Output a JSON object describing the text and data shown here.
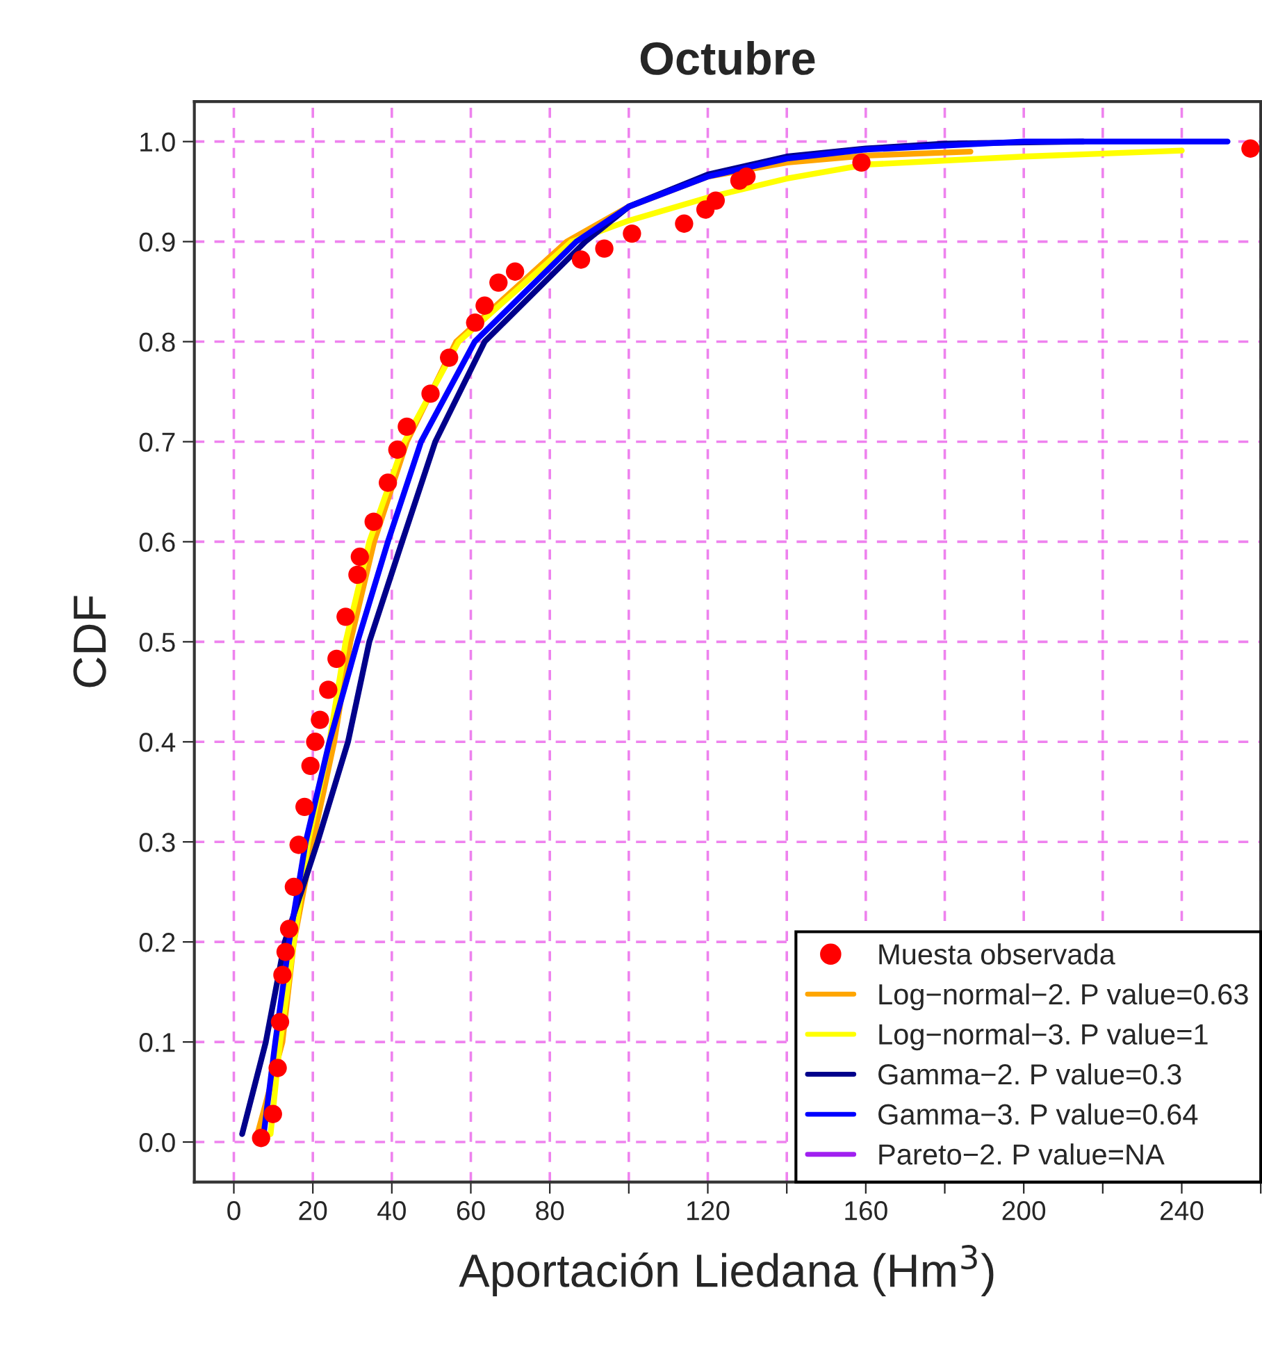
{
  "chart_data": {
    "type": "line",
    "title": "Octubre",
    "xlabel": "Aportación Liedana (Hm$^{3}$)",
    "ylabel": "CDF",
    "xlim": [
      -10,
      260
    ],
    "ylim": [
      -0.04,
      1.04
    ],
    "xticks": [
      0,
      20,
      40,
      60,
      80,
      {
        "value": 100,
        "label": null
      },
      120,
      {
        "value": 140,
        "label": null
      },
      160,
      {
        "value": 180,
        "label": null
      },
      200,
      {
        "value": 220,
        "label": null
      },
      240,
      {
        "value": 260,
        "label": null
      }
    ],
    "yticks": [
      {
        "value": 0,
        "label": "0.0"
      },
      0.1,
      0.2,
      0.3,
      0.4,
      0.5,
      0.6,
      0.7,
      0.8,
      0.9,
      {
        "value": 1,
        "label": "1.0"
      }
    ],
    "grid": true,
    "legend": "bottom right",
    "series": [
      {
        "name": "Muesta observada",
        "type": "scatter",
        "marker": "circle",
        "color": "#ff0000",
        "x": [
          6.9,
          9.9,
          11.1,
          11.7,
          12.3,
          13.1,
          14.0,
          15.2,
          16.4,
          17.9,
          19.4,
          20.6,
          21.8,
          23.9,
          26.0,
          28.3,
          31.3,
          31.9,
          35.4,
          39.0,
          41.4,
          43.8,
          49.8,
          54.5,
          61.1,
          63.5,
          67.0,
          71.2,
          87.9,
          93.8,
          100.8,
          114.0,
          119.4,
          122.0,
          128.0,
          129.8,
          158.9,
          257.4
        ],
        "values": [
          0.004,
          0.028,
          0.074,
          0.12,
          0.167,
          0.19,
          0.213,
          0.255,
          0.297,
          0.335,
          0.376,
          0.4,
          0.422,
          0.452,
          0.483,
          0.525,
          0.567,
          0.585,
          0.62,
          0.659,
          0.692,
          0.715,
          0.748,
          0.784,
          0.819,
          0.836,
          0.859,
          0.87,
          0.882,
          0.893,
          0.908,
          0.918,
          0.932,
          0.941,
          0.961,
          0.965,
          0.979,
          0.993
        ]
      },
      {
        "name": "Log−normal−2. P value=0.63",
        "color": "#ffa500",
        "x": [
          5.7,
          12.3,
          15.2,
          20.0,
          25.4,
          29.5,
          35.5,
          43.8,
          56.3,
          84.3,
          100,
          120,
          140,
          160,
          186.5
        ],
        "values": [
          0.004,
          0.1,
          0.2,
          0.3,
          0.4,
          0.5,
          0.6,
          0.7,
          0.8,
          0.9,
          0.935,
          0.965,
          0.979,
          0.986,
          0.99
        ]
      },
      {
        "name": "Log−normal−3. P value=1",
        "color": "#ffff00",
        "x": [
          9.3,
          11.7,
          15.2,
          18.8,
          24.2,
          28.3,
          34.3,
          43.2,
          56.9,
          85.5,
          100,
          120,
          140,
          160,
          180,
          200,
          240
        ],
        "values": [
          0.008,
          0.1,
          0.2,
          0.3,
          0.4,
          0.5,
          0.6,
          0.7,
          0.8,
          0.9,
          0.921,
          0.944,
          0.963,
          0.977,
          0.981,
          0.985,
          0.991
        ]
      },
      {
        "name": "Gamma−2. P value=0.3",
        "color": "#00008b",
        "x": [
          2.1,
          8.1,
          12.9,
          21.2,
          28.9,
          34.3,
          42.6,
          51,
          63.5,
          89,
          100,
          120,
          140,
          160,
          180,
          215
        ],
        "values": [
          0.008,
          0.1,
          0.2,
          0.3,
          0.4,
          0.5,
          0.6,
          0.7,
          0.8,
          0.9,
          0.935,
          0.967,
          0.985,
          0.993,
          0.998,
          1.0
        ]
      },
      {
        "name": "Gamma−3. P value=0.64",
        "color": "#0000ff",
        "x": [
          7.5,
          10.5,
          14.0,
          18.2,
          24.2,
          31.3,
          39,
          47.4,
          61,
          86.7,
          100,
          120,
          140,
          160,
          200,
          251.6
        ],
        "values": [
          0.006,
          0.1,
          0.2,
          0.3,
          0.4,
          0.5,
          0.6,
          0.7,
          0.8,
          0.9,
          0.935,
          0.965,
          0.983,
          0.992,
          1.0,
          1.0
        ]
      },
      {
        "name": "Pareto−2. P value=NA",
        "color": "#a020f0"
      }
    ]
  }
}
